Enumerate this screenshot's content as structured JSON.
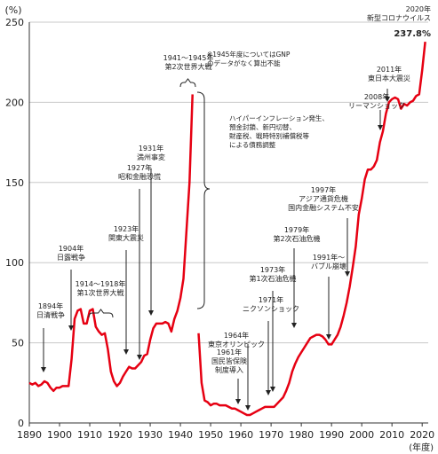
{
  "chart_data": {
    "type": "line",
    "y_unit": "(%)",
    "x_unit": "(年度)",
    "xlim": [
      1890,
      2022
    ],
    "ylim": [
      0,
      250
    ],
    "x_ticks": [
      1890,
      1900,
      1910,
      1920,
      1930,
      1940,
      1950,
      1960,
      1970,
      1980,
      1990,
      2000,
      2010,
      2020
    ],
    "y_ticks": [
      0,
      50,
      100,
      150,
      200,
      250
    ],
    "grid": "horizontal",
    "line_color": "#e60012",
    "series": [
      {
        "name": "",
        "segments": [
          [
            [
              1890,
              25
            ],
            [
              1891,
              24
            ],
            [
              1892,
              25
            ],
            [
              1893,
              23
            ],
            [
              1894,
              24
            ],
            [
              1895,
              26
            ],
            [
              1896,
              25
            ],
            [
              1897,
              22
            ],
            [
              1898,
              20
            ],
            [
              1899,
              22
            ],
            [
              1900,
              22
            ],
            [
              1901,
              23
            ],
            [
              1902,
              23
            ],
            [
              1903,
              23
            ],
            [
              1904,
              40
            ],
            [
              1905,
              65
            ],
            [
              1906,
              70
            ],
            [
              1907,
              71
            ],
            [
              1908,
              62
            ],
            [
              1909,
              62
            ],
            [
              1910,
              70
            ],
            [
              1911,
              71
            ],
            [
              1912,
              60
            ],
            [
              1913,
              57
            ],
            [
              1914,
              55
            ],
            [
              1915,
              56
            ],
            [
              1916,
              46
            ],
            [
              1917,
              32
            ],
            [
              1918,
              26
            ],
            [
              1919,
              23
            ],
            [
              1920,
              25
            ],
            [
              1921,
              29
            ],
            [
              1922,
              32
            ],
            [
              1923,
              35
            ],
            [
              1924,
              34
            ],
            [
              1925,
              34
            ],
            [
              1926,
              36
            ],
            [
              1927,
              38
            ],
            [
              1928,
              42
            ],
            [
              1929,
              43
            ],
            [
              1930,
              52
            ],
            [
              1931,
              59
            ],
            [
              1932,
              62
            ],
            [
              1933,
              62
            ],
            [
              1934,
              62
            ],
            [
              1935,
              63
            ],
            [
              1936,
              62
            ],
            [
              1937,
              57
            ],
            [
              1938,
              65
            ],
            [
              1939,
              70
            ],
            [
              1940,
              78
            ],
            [
              1941,
              90
            ],
            [
              1942,
              120
            ],
            [
              1943,
              150
            ],
            [
              1944,
              205
            ]
          ],
          [
            [
              1946,
              56
            ],
            [
              1947,
              25
            ],
            [
              1948,
              14
            ],
            [
              1949,
              13
            ],
            [
              1950,
              11
            ],
            [
              1951,
              12
            ],
            [
              1952,
              12
            ],
            [
              1953,
              11
            ],
            [
              1954,
              11
            ],
            [
              1955,
              11
            ],
            [
              1956,
              10
            ],
            [
              1957,
              9
            ],
            [
              1958,
              9
            ],
            [
              1959,
              8
            ],
            [
              1960,
              7
            ],
            [
              1961,
              6
            ],
            [
              1962,
              5
            ],
            [
              1963,
              5
            ],
            [
              1964,
              6
            ],
            [
              1965,
              7
            ],
            [
              1966,
              8
            ],
            [
              1967,
              9
            ],
            [
              1968,
              10
            ],
            [
              1969,
              10
            ],
            [
              1970,
              10
            ],
            [
              1971,
              10
            ],
            [
              1972,
              12
            ],
            [
              1973,
              14
            ],
            [
              1974,
              16
            ],
            [
              1975,
              20
            ],
            [
              1976,
              25
            ],
            [
              1977,
              32
            ],
            [
              1978,
              37
            ],
            [
              1979,
              41
            ],
            [
              1980,
              44
            ],
            [
              1981,
              47
            ],
            [
              1982,
              50
            ],
            [
              1983,
              53
            ],
            [
              1984,
              54
            ],
            [
              1985,
              55
            ],
            [
              1986,
              55
            ],
            [
              1987,
              54
            ],
            [
              1988,
              52
            ],
            [
              1989,
              49
            ],
            [
              1990,
              49
            ],
            [
              1991,
              52
            ],
            [
              1992,
              55
            ],
            [
              1993,
              60
            ],
            [
              1994,
              67
            ],
            [
              1995,
              75
            ],
            [
              1996,
              85
            ],
            [
              1997,
              97
            ],
            [
              1998,
              110
            ],
            [
              1999,
              130
            ],
            [
              2000,
              140
            ],
            [
              2001,
              152
            ],
            [
              2002,
              158
            ],
            [
              2003,
              158
            ],
            [
              2004,
              160
            ],
            [
              2005,
              164
            ],
            [
              2006,
              175
            ],
            [
              2007,
              182
            ],
            [
              2008,
              193
            ],
            [
              2009,
              200
            ],
            [
              2010,
              202
            ],
            [
              2011,
              203
            ],
            [
              2012,
              202
            ],
            [
              2013,
              196
            ],
            [
              2014,
              199
            ],
            [
              2015,
              198
            ],
            [
              2016,
              200
            ],
            [
              2017,
              201
            ],
            [
              2018,
              204
            ],
            [
              2019,
              205
            ],
            [
              2020,
              220
            ],
            [
              2021,
              237.8
            ]
          ]
        ]
      }
    ],
    "annotations": [
      {
        "id": "a1894",
        "lines": [
          "1894年",
          "日清戦争"
        ],
        "x": 1894,
        "y": 8
      },
      {
        "id": "a1904",
        "lines": [
          "1904年",
          "日露戦争"
        ],
        "x": 1904,
        "y": 58
      },
      {
        "id": "a1914",
        "lines": [
          "1914〜1918年",
          "第1次世界大戦"
        ],
        "x": 1916,
        "y": 51
      },
      {
        "id": "a1923",
        "lines": [
          "1923年",
          "関東大震災"
        ],
        "x": 1923,
        "y": 61
      },
      {
        "id": "a1927",
        "lines": [
          "1927年",
          "昭和金融恐慌"
        ],
        "x": 1927,
        "y": 40
      },
      {
        "id": "a1931",
        "lines": [
          "1931年",
          "満州事変"
        ],
        "x": 1931,
        "y": 110
      },
      {
        "id": "a1941",
        "lines": [
          "1941〜1945年",
          "第2次世界大戦"
        ],
        "x": 1942,
        "y": 205
      },
      {
        "id": "a1961",
        "lines": [
          "1961年",
          "国民皆保険",
          "制度導入"
        ],
        "x": 1961,
        "y": 0
      },
      {
        "id": "a1964",
        "lines": [
          "1964年",
          "東京オリンピック"
        ],
        "x": 1964,
        "y": 0
      },
      {
        "id": "a1971",
        "lines": [
          "1971年",
          "ニクソンショック"
        ],
        "x": 1971,
        "y": 3
      },
      {
        "id": "a1973",
        "lines": [
          "1973年",
          "第1次石油危機"
        ],
        "x": 1973,
        "y": 6
      },
      {
        "id": "a1979",
        "lines": [
          "1979年",
          "第2次石油危機"
        ],
        "x": 1979,
        "y": 42
      },
      {
        "id": "a1991",
        "lines": [
          "1991年〜",
          "バブル崩壊"
        ],
        "x": 1991,
        "y": 54
      },
      {
        "id": "a1997",
        "lines": [
          "1997年",
          "アジア通貨危機",
          "国内金融システム不安"
        ],
        "x": 1997,
        "y": 91
      },
      {
        "id": "a2008",
        "lines": [
          "2008年",
          "リーマンショック"
        ],
        "x": 2008,
        "y": 183
      },
      {
        "id": "a2011",
        "lines": [
          "2011年",
          "東日本大震災"
        ],
        "x": 2011,
        "y": 206
      },
      {
        "id": "a2020",
        "lines": [
          "2020年",
          "新型コロナウイルス"
        ],
        "x": 2021,
        "y": 237.8
      }
    ],
    "final_value_label": "237.8%",
    "notes": {
      "gnp": [
        "※1945年度についてはGNP",
        "のデータがなく算出不能"
      ],
      "hyperinflation": [
        "ハイパーインフレーション発生、",
        "預金封鎖、新円切替、",
        "財産税、戦時特別補償税等",
        "による債務調整"
      ]
    }
  }
}
